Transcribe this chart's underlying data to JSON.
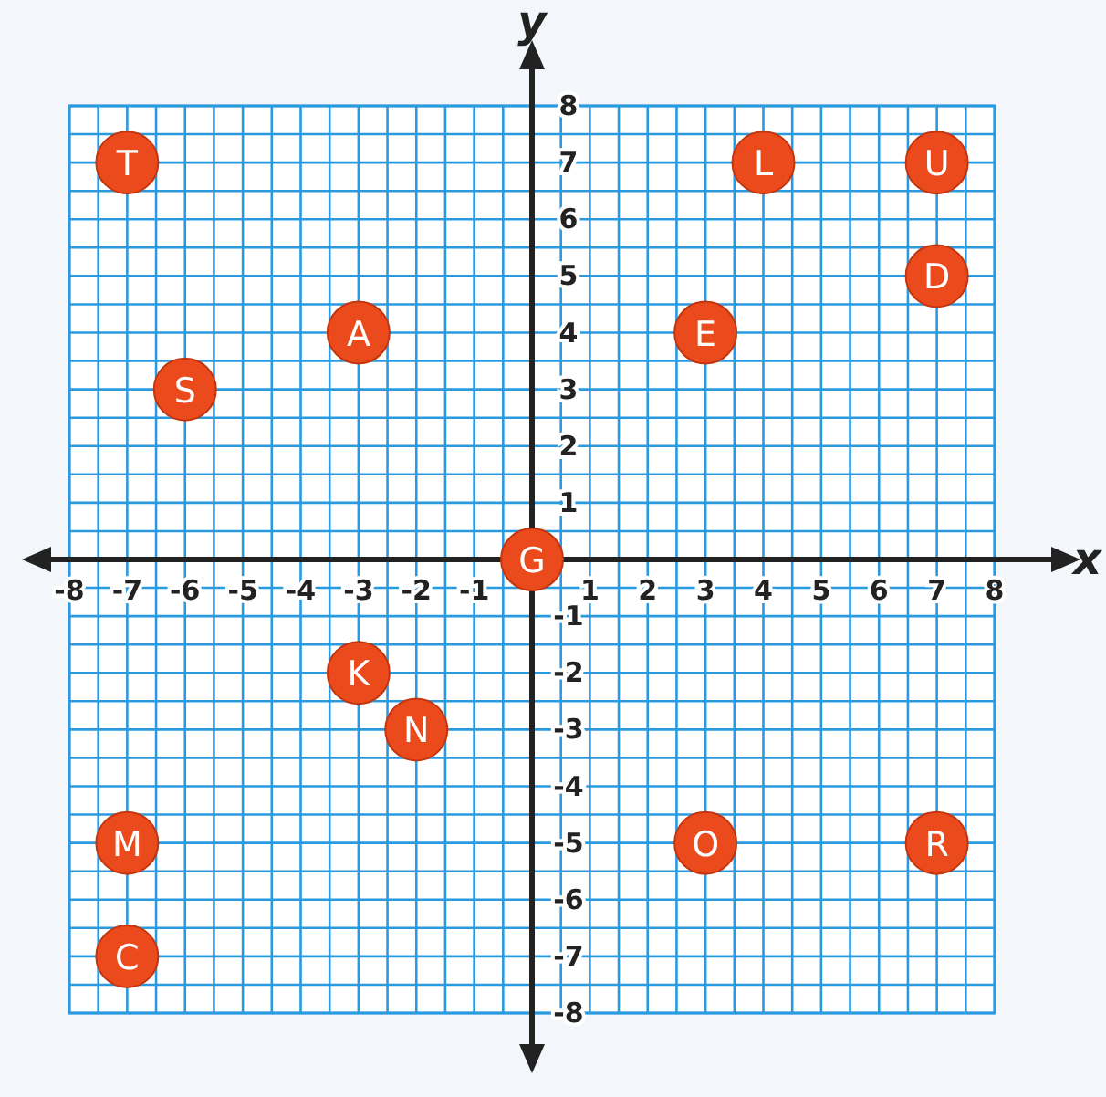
{
  "chart_data": {
    "type": "scatter",
    "xlabel": "x",
    "ylabel": "y",
    "x": [
      -7,
      4,
      7,
      7,
      -3,
      3,
      -6,
      0,
      -3,
      -2,
      -7,
      3,
      7,
      -7
    ],
    "values": [
      7,
      7,
      7,
      5,
      4,
      4,
      3,
      0,
      -2,
      -3,
      -5,
      -5,
      -5,
      -7
    ],
    "color": "#ea4a1c",
    "marker": "circle",
    "grid": true,
    "xlim": [
      -8,
      8
    ],
    "ylim": [
      -8,
      8
    ],
    "xticks": [
      -8,
      {
        "value": -7.5,
        "label": null
      },
      -7,
      {
        "value": -6.5,
        "label": null
      },
      -6,
      {
        "value": -5.5,
        "label": null
      },
      -5,
      {
        "value": -4.5,
        "label": null
      },
      -4,
      {
        "value": -3.5,
        "label": null
      },
      -3,
      {
        "value": -2.5,
        "label": null
      },
      -2,
      {
        "value": -1.5,
        "label": null
      },
      -1,
      {
        "value": -0.5,
        "label": null
      },
      {
        "value": 0,
        "label": null
      },
      {
        "value": 0.5,
        "label": null
      },
      1,
      {
        "value": 1.5,
        "label": null
      },
      2,
      {
        "value": 2.5,
        "label": null
      },
      3,
      {
        "value": 3.5,
        "label": null
      },
      4,
      {
        "value": 4.5,
        "label": null
      },
      5,
      {
        "value": 5.5,
        "label": null
      },
      6,
      {
        "value": 6.5,
        "label": null
      },
      7,
      {
        "value": 7.5,
        "label": null
      },
      8
    ],
    "yticks": [
      -8,
      {
        "value": -7.5,
        "label": null
      },
      -7,
      {
        "value": -6.5,
        "label": null
      },
      -6,
      {
        "value": -5.5,
        "label": null
      },
      -5,
      {
        "value": -4.5,
        "label": null
      },
      -4,
      {
        "value": -3.5,
        "label": null
      },
      -3,
      {
        "value": -2.5,
        "label": null
      },
      -2,
      {
        "value": -1.5,
        "label": null
      },
      -1,
      {
        "value": -0.5,
        "label": null
      },
      {
        "value": 0,
        "label": null
      },
      {
        "value": 0.5,
        "label": null
      },
      1,
      {
        "value": 1.5,
        "label": null
      },
      2,
      {
        "value": 2.5,
        "label": null
      },
      3,
      {
        "value": 3.5,
        "label": null
      },
      4,
      {
        "value": 4.5,
        "label": null
      },
      5,
      {
        "value": 5.5,
        "label": null
      },
      6,
      {
        "value": 6.5,
        "label": null
      },
      7,
      {
        "value": 7.5,
        "label": null
      },
      8
    ],
    "annotations": [
      {
        "text": "T",
        "x": -7,
        "y": 7
      },
      {
        "text": "L",
        "x": 4,
        "y": 7
      },
      {
        "text": "U",
        "x": 7,
        "y": 7
      },
      {
        "text": "D",
        "x": 7,
        "y": 5
      },
      {
        "text": "A",
        "x": -3,
        "y": 4
      },
      {
        "text": "E",
        "x": 3,
        "y": 4
      },
      {
        "text": "S",
        "x": -6,
        "y": 3
      },
      {
        "text": "G",
        "x": 0,
        "y": 0
      },
      {
        "text": "K",
        "x": -3,
        "y": -2
      },
      {
        "text": "N",
        "x": -2,
        "y": -3
      },
      {
        "text": "M",
        "x": -7,
        "y": -5
      },
      {
        "text": "O",
        "x": 3,
        "y": -5
      },
      {
        "text": "R",
        "x": 7,
        "y": -5
      },
      {
        "text": "C",
        "x": -7,
        "y": -7
      }
    ]
  }
}
